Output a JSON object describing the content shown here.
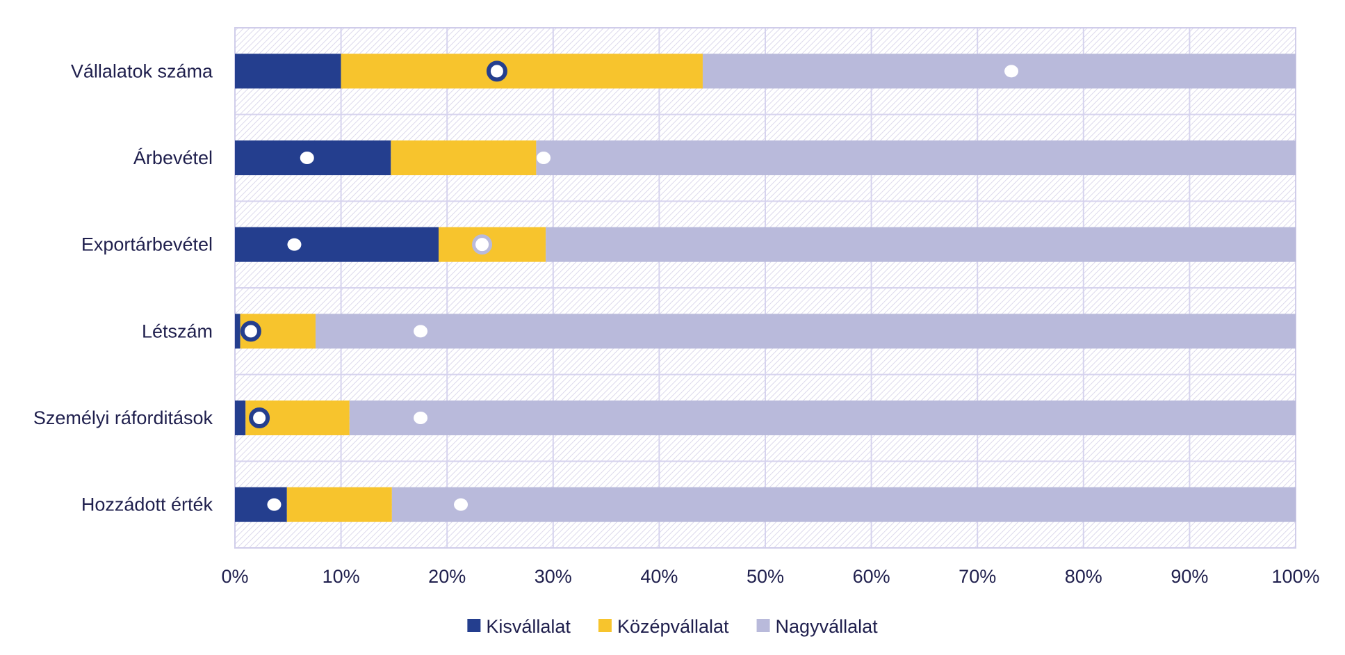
{
  "chart_data": {
    "type": "bar",
    "orientation": "horizontal",
    "stacked": "percent",
    "title": "",
    "xlabel": "",
    "ylabel": "",
    "xlim": [
      0,
      100
    ],
    "categories": [
      "Vállalatok száma",
      "Árbevétel",
      "Exportárbevétel",
      "Létszám",
      "Személyi ráforditások",
      "Hozzádott érték"
    ],
    "series": [
      {
        "name": "Kisvállalat",
        "color": "#243e8e",
        "values": [
          10,
          14.7,
          19.2,
          0.5,
          1,
          4.9
        ]
      },
      {
        "name": "Középvállalat",
        "color": "#f7c42d",
        "values": [
          34.1,
          13.7,
          10.1,
          7.1,
          9.8,
          9.9
        ]
      },
      {
        "name": "Nagyvállalat",
        "color": "#b9badb",
        "values": [
          55.9,
          71.6,
          70.7,
          92.4,
          89.2,
          85.2
        ]
      }
    ],
    "markers": [
      {
        "series": "Kisvállalat",
        "style": "white-dot",
        "values": [
          null,
          6.8,
          5.6,
          null,
          null,
          3.7
        ]
      },
      {
        "series": "Középvállalat",
        "style": "ring-dark",
        "values": [
          24.7,
          null,
          null,
          1.5,
          2.3,
          null
        ]
      },
      {
        "series": "Középvállalat",
        "style": "ring-light",
        "values": [
          null,
          null,
          23.3,
          null,
          null,
          null
        ]
      },
      {
        "series": "Nagyvállalat",
        "style": "white-dot",
        "values": [
          73.2,
          29.1,
          null,
          17.5,
          17.5,
          21.3
        ]
      }
    ],
    "ticks": [
      "0%",
      "10%",
      "20%",
      "30%",
      "40%",
      "50%",
      "60%",
      "70%",
      "80%",
      "90%",
      "100%"
    ],
    "grid": true,
    "legend_position": "bottom"
  }
}
